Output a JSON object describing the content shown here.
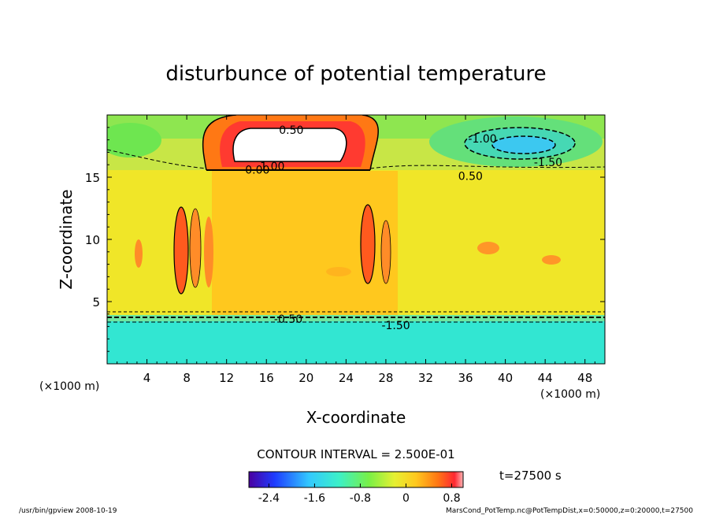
{
  "chart_data": {
    "type": "heatmap",
    "title": "disturbunce of potential temperature",
    "xlabel": "X-coordinate",
    "ylabel": "Z-coordinate",
    "x_unit": "(×1000 m)",
    "y_unit": "(×1000 m)",
    "xlim": [
      0,
      50
    ],
    "ylim": [
      0,
      20
    ],
    "x_ticks": [
      "4",
      "8",
      "12",
      "16",
      "20",
      "24",
      "28",
      "32",
      "36",
      "40",
      "44",
      "48"
    ],
    "y_ticks": [
      "5",
      "10",
      "15"
    ],
    "contour_interval_label": "CONTOUR INTERVAL = 2.500E-01",
    "time_label": "t=27500 s",
    "colorbar": {
      "range": [
        -2.75,
        1.0
      ],
      "tick_labels": [
        "-2.4",
        "-1.6",
        "-0.8",
        "0",
        "0.8"
      ],
      "tick_values": [
        -2.4,
        -1.6,
        -0.8,
        0,
        0.8
      ]
    },
    "contour_labels": [
      {
        "text": "0.50",
        "x": 18.5,
        "z": 18.8
      },
      {
        "text": "-1.00",
        "x": 37.7,
        "z": 18.1
      },
      {
        "text": "-1.50",
        "x": 44.3,
        "z": 16.2
      },
      {
        "text": "0.00",
        "x": 15.1,
        "z": 15.6
      },
      {
        "text": "1.00",
        "x": 16.6,
        "z": 15.9
      },
      {
        "text": "0.50",
        "x": 36.5,
        "z": 15.1
      },
      {
        "text": "-0.50",
        "x": 18.2,
        "z": 3.6
      },
      {
        "text": "-1.50",
        "x": 29.0,
        "z": 3.1
      }
    ],
    "fields": {
      "background": -0.0,
      "core": {
        "x": [
          10.5,
          29.2
        ],
        "z": [
          4.2,
          15.3
        ],
        "value": 0.3
      },
      "surface_layer": {
        "z": [
          0,
          3.7
        ],
        "value": -1.6
      },
      "warm_cap": {
        "x": [
          10,
          26
        ],
        "z": [
          15.3,
          20
        ],
        "value": 1.0
      },
      "cold_cell": {
        "x": 38,
        "z": 18,
        "value": -2.0
      }
    }
  },
  "footer": {
    "left": "/usr/bin/gpview   2008-10-19",
    "right": "MarsCond_PotTemp.nc@PotTempDist,x=0:50000,z=0:20000,t=27500"
  }
}
